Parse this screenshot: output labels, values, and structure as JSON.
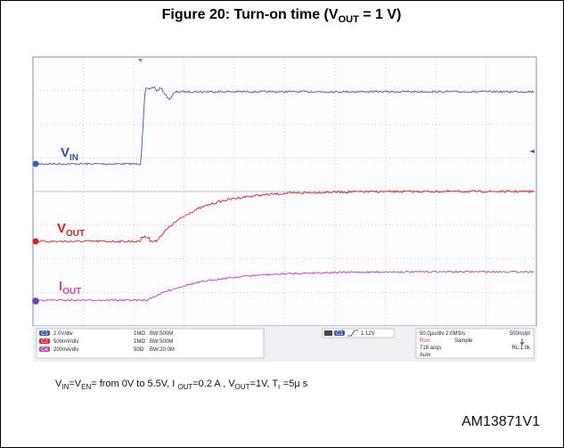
{
  "figure": {
    "title": [
      "Figure 20: Turn-on time (V",
      "OUT",
      " = 1 V)"
    ],
    "id": "AM13871V1"
  },
  "scope": {
    "labels": [
      {
        "main": "V",
        "sub": "IN"
      },
      {
        "main": "V",
        "sub": "OUT"
      },
      {
        "main": "I",
        "sub": "OUT"
      }
    ],
    "channels": [
      {
        "badge": "C1",
        "scale": "2.0V/div",
        "impedance": "1MΩ",
        "bandwidth": "BW:500M"
      },
      {
        "badge": "C2",
        "scale": "500mV/div",
        "impedance": "1MΩ",
        "bandwidth": "BW:500M"
      },
      {
        "badge": "C4",
        "scale": "200mA/div",
        "impedance": "50Ω",
        "bandwidth": "BW:20.0M"
      }
    ],
    "trigger": {
      "badge": "C1",
      "level": "1.12V"
    },
    "acquisition": {
      "timebase": "50.0µs/div 2.0MS/s",
      "resolution": "500ns/pt",
      "state": "Run",
      "mode": "Sample",
      "count": "718 acqs",
      "record": "RL:1.0k",
      "trigger_mode": "Auto"
    }
  },
  "caption": [
    "V",
    "IN",
    "=V",
    "EN",
    "= from  0V  to  5.5V, I ",
    "OUT",
    "=0.2 A    , V",
    "OUT",
    "=1V, T",
    "r",
    " =5µ s"
  ]
}
